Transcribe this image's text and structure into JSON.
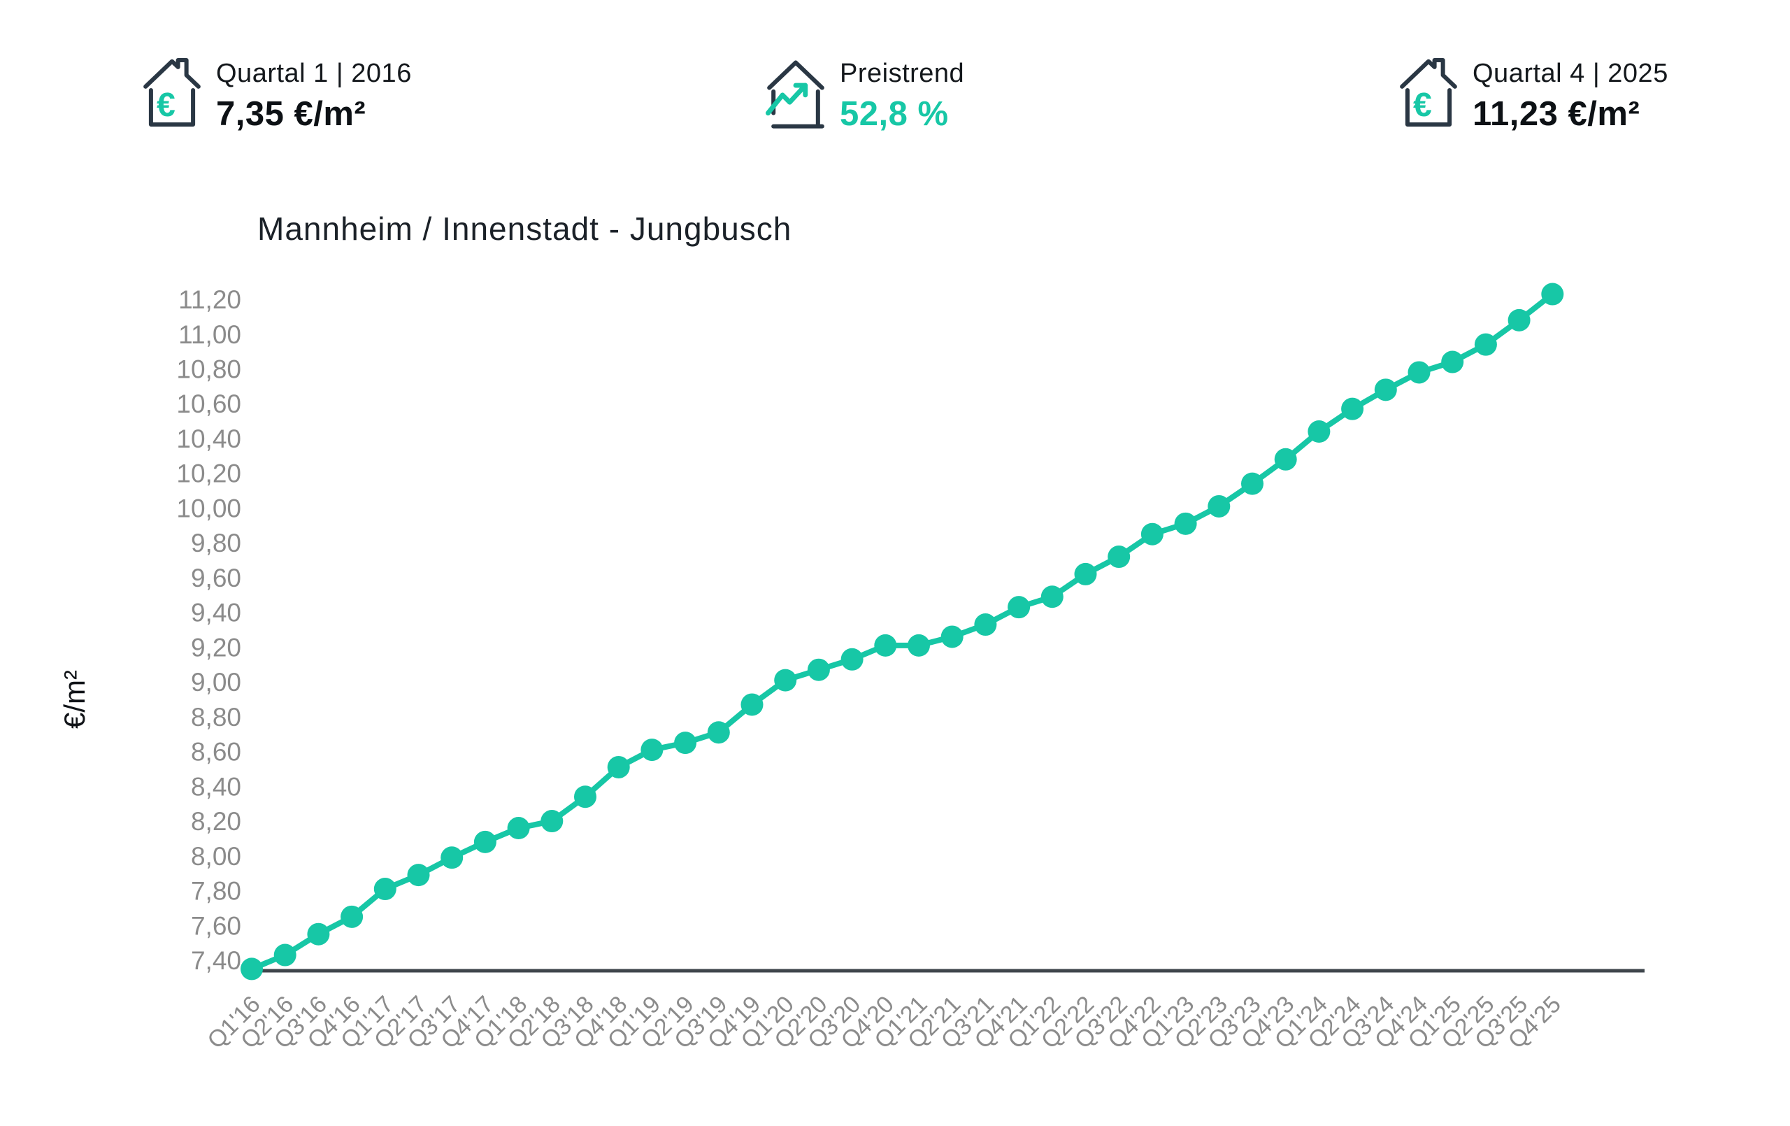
{
  "stats": [
    {
      "icon": "house-euro-icon",
      "label": "Quartal 1 | 2016",
      "value": "7,35 €/m²"
    },
    {
      "icon": "house-trend-icon",
      "label": "Preistrend",
      "value": "52,8 %"
    },
    {
      "icon": "house-euro-icon",
      "label": "Quartal 4 | 2025",
      "value": "11,23 €/m²"
    }
  ],
  "colors": {
    "accent": "#17c7a6",
    "navy": "#2a3744",
    "tick_gray": "#8b8b8b",
    "axis_line": "#3f464c",
    "title_ink": "#1b2128"
  },
  "chart_data": {
    "type": "line",
    "title": "Mannheim / Innenstadt - Jungbusch",
    "ylabel": "€/m²",
    "xlabel": "",
    "grid": false,
    "legend": null,
    "ylim": [
      7.3,
      11.3
    ],
    "ytick_labels": [
      "11,20",
      "11,00",
      "10,80",
      "10,60",
      "10,40",
      "10,20",
      "10,00",
      "9,80",
      "9,60",
      "9,40",
      "9,20",
      "9,00",
      "8,80",
      "8,60",
      "8,40",
      "8,20",
      "8,00",
      "7,80",
      "7,60",
      "7,40"
    ],
    "categories": [
      "Q1'16",
      "Q2'16",
      "Q3'16",
      "Q4'16",
      "Q1'17",
      "Q2'17",
      "Q3'17",
      "Q4'17",
      "Q1'18",
      "Q2'18",
      "Q3'18",
      "Q4'18",
      "Q1'19",
      "Q2'19",
      "Q3'19",
      "Q4'19",
      "Q1'20",
      "Q2'20",
      "Q3'20",
      "Q4'20",
      "Q1'21",
      "Q2'21",
      "Q3'21",
      "Q4'21",
      "Q1'22",
      "Q2'22",
      "Q3'22",
      "Q4'22",
      "Q1'23",
      "Q2'23",
      "Q3'23",
      "Q4'23",
      "Q1'24",
      "Q2'24",
      "Q3'24",
      "Q4'24",
      "Q1'25",
      "Q2'25",
      "Q3'25",
      "Q4'25"
    ],
    "values": [
      7.35,
      7.43,
      7.55,
      7.65,
      7.81,
      7.89,
      7.99,
      8.08,
      8.16,
      8.2,
      8.34,
      8.51,
      8.61,
      8.65,
      8.71,
      8.87,
      9.01,
      9.07,
      9.13,
      9.21,
      9.21,
      9.26,
      9.33,
      9.43,
      9.49,
      9.62,
      9.72,
      9.85,
      9.91,
      10.01,
      10.14,
      10.28,
      10.44,
      10.57,
      10.68,
      10.78,
      10.84,
      10.94,
      11.08,
      11.23
    ],
    "line_color": "#17c7a6",
    "point_radius": 16
  }
}
